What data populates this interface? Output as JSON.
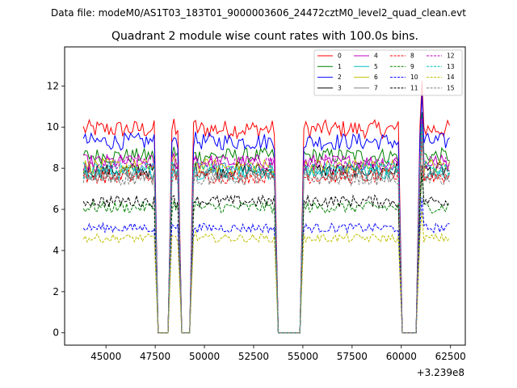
{
  "chart_data": {
    "type": "line",
    "suptitle": "Data file: modeM0/AS1T03_183T01_9000003606_24472cztM0_level2_quad_clean.evt",
    "title": "Quadrant 2 module wise count rates with 100.0s bins.",
    "xlabel": "",
    "ylabel": "",
    "x_offset_label": "+3.239e8",
    "xlim": [
      42900,
      63250
    ],
    "ylim": [
      -0.6,
      13.9
    ],
    "xticks": [
      45000,
      47500,
      50000,
      52500,
      55000,
      57500,
      60000,
      62500
    ],
    "yticks": [
      0,
      2,
      4,
      6,
      8,
      10,
      12
    ],
    "legend_position": "top-right",
    "legend_columns": 4,
    "segments": [
      [
        43850,
        47450
      ],
      [
        48350,
        48650
      ],
      [
        49450,
        53550
      ],
      [
        55050,
        59850
      ],
      [
        60950,
        62450
      ]
    ],
    "gaps": [
      [
        47650,
        48150
      ],
      [
        48850,
        49250
      ],
      [
        53750,
        54850
      ],
      [
        60050,
        60750
      ]
    ],
    "spike_points": [
      [
        48450,
        1.04
      ],
      [
        49550,
        1.03
      ],
      [
        61050,
        1.25
      ]
    ],
    "series": [
      {
        "name": "0",
        "color": "#ff0000",
        "dash": "solid",
        "level": 9.9
      },
      {
        "name": "1",
        "color": "#008000",
        "dash": "solid",
        "level": 8.6
      },
      {
        "name": "2",
        "color": "#0000ff",
        "dash": "solid",
        "level": 9.3
      },
      {
        "name": "3",
        "color": "#000000",
        "dash": "solid",
        "level": 7.9
      },
      {
        "name": "4",
        "color": "#bf00bf",
        "dash": "solid",
        "level": 8.3
      },
      {
        "name": "5",
        "color": "#00bfbf",
        "dash": "solid",
        "level": 7.8
      },
      {
        "name": "6",
        "color": "#bfbf00",
        "dash": "solid",
        "level": 8.1
      },
      {
        "name": "7",
        "color": "#808080",
        "dash": "solid",
        "level": 7.7
      },
      {
        "name": "8",
        "color": "#ff0000",
        "dash": "dashed",
        "level": 7.6
      },
      {
        "name": "9",
        "color": "#008000",
        "dash": "dashed",
        "level": 6.1
      },
      {
        "name": "10",
        "color": "#0000ff",
        "dash": "dashed",
        "level": 5.1
      },
      {
        "name": "11",
        "color": "#000000",
        "dash": "dashed",
        "level": 6.4
      },
      {
        "name": "12",
        "color": "#bf00bf",
        "dash": "dashed",
        "level": 8.2
      },
      {
        "name": "13",
        "color": "#00bfbf",
        "dash": "dashed",
        "level": 8.0
      },
      {
        "name": "14",
        "color": "#bfbf00",
        "dash": "dashed",
        "level": 4.6
      },
      {
        "name": "15",
        "color": "#808080",
        "dash": "dashed",
        "level": 7.5
      }
    ]
  }
}
